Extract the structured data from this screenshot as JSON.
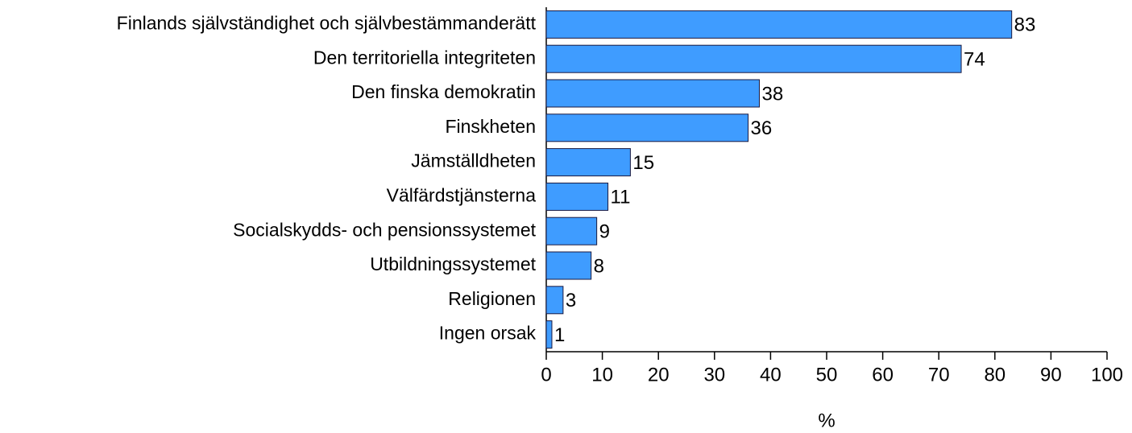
{
  "chart_data": {
    "type": "bar",
    "orientation": "horizontal",
    "categories": [
      "Finlands självständighet och självbestämmanderätt",
      "Den territoriella integriteten",
      "Den finska demokratin",
      "Finskheten",
      "Jämställdheten",
      "Välfärdstjänsterna",
      "Socialskydds- och pensionssystemet",
      "Utbildningssystemet",
      "Religionen",
      "Ingen orsak"
    ],
    "values": [
      83,
      74,
      38,
      36,
      15,
      11,
      9,
      8,
      3,
      1
    ],
    "color": "#3f9cff",
    "x_label": "%",
    "xlim": [
      0,
      100
    ],
    "xticks": [
      0,
      10,
      20,
      30,
      40,
      50,
      60,
      70,
      80,
      90,
      100
    ]
  }
}
